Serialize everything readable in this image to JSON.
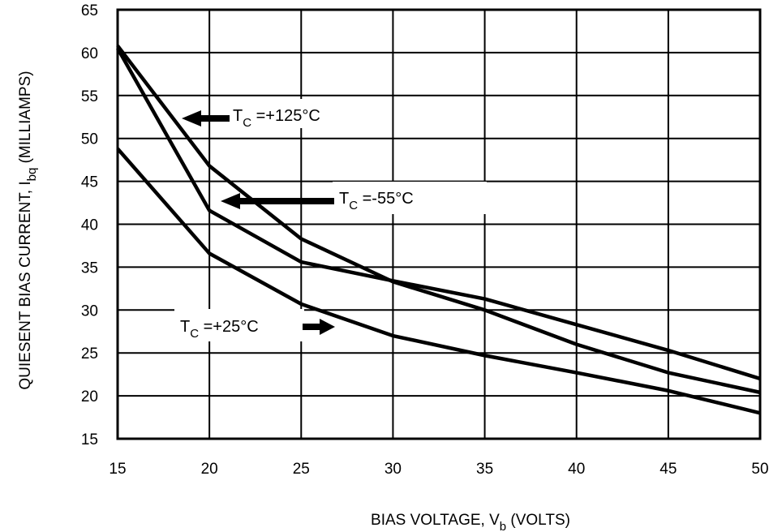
{
  "chart_data": {
    "type": "line",
    "xlabel": {
      "main": "BIAS VOLTAGE, V",
      "sub": "b",
      "tail": " (VOLTS)"
    },
    "ylabel": {
      "main": "QUIESENT BIAS CURRENT, I",
      "sub": "bq",
      "tail": " (MILLIAMPS)"
    },
    "xlim": [
      15,
      50
    ],
    "ylim": [
      15,
      65
    ],
    "xticks": [
      "15",
      "20",
      "25",
      "30",
      "35",
      "40",
      "45",
      "50"
    ],
    "yticks": [
      "15",
      "20",
      "25",
      "30",
      "35",
      "40",
      "45",
      "50",
      "55",
      "60",
      "65"
    ],
    "grid": true,
    "series": [
      {
        "name": "T_C = +125°C",
        "x": [
          15,
          20,
          25,
          30,
          35,
          40,
          45,
          50
        ],
        "y": [
          60.8,
          46.8,
          38.3,
          33.3,
          30.0,
          26.0,
          22.7,
          20.4
        ]
      },
      {
        "name": "T_C = -55°C",
        "x": [
          15,
          20,
          25,
          30,
          35,
          40,
          45,
          50
        ],
        "y": [
          60.5,
          41.6,
          35.6,
          33.4,
          31.3,
          28.3,
          25.3,
          22.0
        ]
      },
      {
        "name": "T_C = +25°C",
        "x": [
          15,
          20,
          25,
          30,
          35,
          40,
          45,
          50
        ],
        "y": [
          48.8,
          36.6,
          30.7,
          27.0,
          24.7,
          22.7,
          20.6,
          18.0
        ]
      }
    ],
    "annotations": [
      {
        "id": "ann-125",
        "prefix": "T",
        "sub": "C",
        "value": " =+125°C"
      },
      {
        "id": "ann-55",
        "prefix": "T",
        "sub": "C",
        "value": " =-55°C"
      },
      {
        "id": "ann-25",
        "prefix": "T",
        "sub": "C",
        "value": " =+25°C"
      }
    ]
  }
}
